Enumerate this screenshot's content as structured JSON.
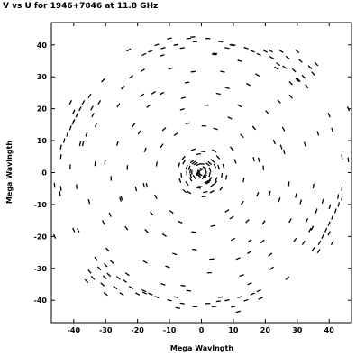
{
  "chart_data": {
    "type": "scatter",
    "title": "V vs U for 1946+7046 at 11.8 GHz",
    "xlabel": "Mega Wavlngth",
    "ylabel": "Mega Wavlngth",
    "xlim": [
      -47,
      47
    ],
    "ylim": [
      -47,
      47
    ],
    "x_ticks": [
      -40,
      -30,
      -20,
      -10,
      0,
      10,
      20,
      30,
      40
    ],
    "y_ticks": [
      -40,
      -30,
      -20,
      -10,
      0,
      10,
      20,
      30,
      40
    ],
    "grid": false,
    "marker": "short-dash",
    "series": [
      {
        "points": [
          [
            -1.6,
            -0.3
          ],
          [
            2.0,
            -3.2
          ],
          [
            -0.4,
            -4.4
          ],
          [
            5.4,
            1.7
          ],
          [
            -3.8,
            1.5
          ],
          [
            -0.6,
            -0.2
          ],
          [
            -3.0,
            0.1
          ],
          [
            0.9,
            -0.8
          ],
          [
            -0.4,
            -0.5
          ],
          [
            2.6,
            -0.6
          ],
          [
            -0.8,
            -1.0
          ],
          [
            1.1,
            -1.2
          ],
          [
            1.4,
            0.4
          ],
          [
            -3.5,
            0.5
          ],
          [
            2.7,
            0.9
          ],
          [
            -2.9,
            3.5
          ],
          [
            -4.6,
            -0.1
          ],
          [
            0.2,
            2.7
          ],
          [
            0.2,
            1.2
          ],
          [
            -2.2,
            -1.4
          ],
          [
            1.6,
            -2.9
          ],
          [
            -1.1,
            0.2
          ],
          [
            2.6,
            3.0
          ],
          [
            4.4,
            -3.2
          ],
          [
            -0.9,
            -0.7
          ],
          [
            -4.6,
            1.7
          ],
          [
            -1.0,
            2.5
          ],
          [
            -0.4,
            0.6
          ],
          [
            -3.4,
            -2.1
          ],
          [
            4.6,
            -2.1
          ],
          [
            -4.5,
            -3.4
          ],
          [
            -0.9,
            -4.8
          ],
          [
            -3.3,
            -1.1
          ],
          [
            2.8,
            -2.0
          ],
          [
            3.5,
            3.7
          ],
          [
            1.0,
            1.5
          ],
          [
            -1.8,
            2.8
          ],
          [
            2.0,
            2.6
          ],
          [
            0.8,
            -1.6
          ],
          [
            2.3,
            -2.8
          ],
          [
            -5.5,
            3.3
          ],
          [
            3.4,
            -4.0
          ],
          [
            4.2,
            2.1
          ],
          [
            -2.4,
            3.1
          ],
          [
            -5.6,
            4.6
          ],
          [
            1.2,
            -6.1
          ],
          [
            -0.9,
            5.8
          ],
          [
            3.3,
            -6.0
          ],
          [
            6.4,
            -0.9
          ],
          [
            -6.3,
            -0.8
          ],
          [
            0.5,
            6.6
          ],
          [
            -3.9,
            -6.2
          ],
          [
            5.2,
            4.8
          ],
          [
            -6.7,
            -2.5
          ],
          [
            6.9,
            2.0
          ],
          [
            0.8,
            -7.5
          ],
          [
            -2.5,
            7.2
          ],
          [
            7.8,
            -1.5
          ],
          [
            -7.0,
            2.4
          ],
          [
            4.0,
            6.8
          ],
          [
            -5.3,
            -5.8
          ],
          [
            6.2,
            -5.0
          ],
          [
            10.6,
            3.5
          ],
          [
            9.5,
            7.5
          ],
          [
            13.2,
            -2.3
          ],
          [
            12.8,
            -9.5
          ],
          [
            4.4,
            13.7
          ],
          [
            -9.4,
            -12.3
          ],
          [
            -12.4,
            8.4
          ],
          [
            -14.0,
            2.7
          ],
          [
            0.8,
            14.6
          ],
          [
            -4.3,
            15.4
          ],
          [
            9.5,
            -14.1
          ],
          [
            -14.3,
            -7.6
          ],
          [
            16.4,
            4.2
          ],
          [
            -6.7,
            -15.5
          ],
          [
            3.6,
            -16.7
          ],
          [
            -17.1,
            -4.0
          ],
          [
            12.7,
            11.5
          ],
          [
            -11.7,
            13.6
          ],
          [
            17.6,
            -6.8
          ],
          [
            -2.4,
            -18.6
          ],
          [
            8.9,
            17.1
          ],
          [
            -17.6,
            7.1
          ],
          [
            19.4,
            1.5
          ],
          [
            -15.6,
            -12.8
          ],
          [
            14.4,
            -15.2
          ],
          [
            -6.0,
            19.8
          ],
          [
            1.5,
            21.1
          ],
          [
            -20.5,
            -5.1
          ],
          [
            16.5,
            14.0
          ],
          [
            21.4,
            -6.5
          ],
          [
            -11.6,
            -19.6
          ],
          [
            9.9,
            -20.9
          ],
          [
            -19.4,
            12.6
          ],
          [
            -23.2,
            1.6
          ],
          [
            12.0,
            20.9
          ],
          [
            22.8,
            9.6
          ],
          [
            -5.7,
            23.4
          ],
          [
            -2.2,
            -24.1
          ],
          [
            19.5,
            -15.6
          ],
          [
            -17.2,
            -18.3
          ],
          [
            5.3,
            24.7
          ],
          [
            24.4,
            -8.5
          ],
          [
            -21.2,
            14.9
          ],
          [
            -25.4,
            -8.4
          ],
          [
            15.1,
            -21.4
          ],
          [
            -16.6,
            20.8
          ],
          [
            25.9,
            6.5
          ],
          [
            -8.4,
            -25.5
          ],
          [
            3.2,
            -27.1
          ],
          [
            -26.3,
            9.1
          ],
          [
            20.6,
            18.9
          ],
          [
            -12.4,
            24.8
          ],
          [
            8.1,
            26.5
          ],
          [
            27.4,
            -3.5
          ],
          [
            -28.3,
            -1.8
          ],
          [
            19.1,
            -21.6
          ],
          [
            -23.5,
            -17.4
          ],
          [
            -4.5,
            28.2
          ],
          [
            11.5,
            -26.9
          ],
          [
            25.7,
            13.6
          ],
          [
            29.6,
            -7.2
          ],
          [
            -18.6,
            24.2
          ],
          [
            -30.2,
            3.3
          ],
          [
            14.7,
            27.6
          ],
          [
            -10.6,
            -29.5
          ],
          [
            27.8,
            -15.0
          ],
          [
            -28.6,
            -13.2
          ],
          [
            2.5,
            -31.4
          ],
          [
            24.3,
            22.3
          ],
          [
            -2.6,
            31.6
          ],
          [
            -26.0,
            21.1
          ],
          [
            6.6,
            31.6
          ],
          [
            31.1,
            -9.2
          ],
          [
            -17.6,
            -28.0
          ],
          [
            21.5,
            -25.7
          ],
          [
            -33.3,
            2.8
          ],
          [
            32.4,
            8.9
          ],
          [
            -9.6,
            32.6
          ],
          [
            12.6,
            -32.2
          ],
          [
            -30.7,
            -15.6
          ],
          [
            17.5,
            30.6
          ],
          [
            -24.6,
            26.6
          ],
          [
            35.1,
            -4.2
          ],
          [
            -5.8,
            -35.4
          ],
          [
            29.3,
            -21.1
          ],
          [
            -35.2,
            -9.1
          ],
          [
            28.0,
            23.8
          ],
          [
            -18.4,
            32.0
          ],
          [
            4.2,
            37.3
          ],
          [
            -29.4,
            -24.1
          ],
          [
            15.1,
            -34.8
          ],
          [
            -37.1,
            9.0
          ],
          [
            36.5,
            12.3
          ],
          [
            -12.3,
            36.7
          ],
          [
            -23.2,
            -31.8
          ],
          [
            34.7,
            -17.4
          ],
          [
            -39.1,
            -4.4
          ],
          [
            23.5,
            32.7
          ],
          [
            -34.3,
            20.2
          ],
          [
            5.3,
            -40.3
          ],
          [
            9.5,
            39.9
          ],
          [
            -41.1,
            1.8
          ],
          [
            40.2,
            -10.7
          ],
          [
            -17.8,
            -37.7
          ],
          [
            30.5,
            29.0
          ],
          [
            -30.8,
            28.9
          ],
          [
            26.9,
            -33.1
          ],
          [
            -38.6,
            -18.1
          ],
          [
            -2.7,
            42.5
          ],
          [
            41.0,
            13.3
          ],
          [
            -7.4,
            -42.4
          ],
          [
            18.5,
            -39.4
          ],
          [
            -40.2,
            15.7
          ],
          [
            36.7,
            -24.6
          ],
          [
            -30.3,
            -32.8
          ],
          [
            21.7,
            38.1
          ],
          [
            42.8,
            -7.5
          ],
          [
            -22.8,
            38.4
          ],
          [
            -44.3,
            -6.6
          ],
          [
            11.5,
            -43.6
          ],
          [
            -36,
            -34
          ],
          [
            -34,
            -33
          ],
          [
            -32,
            -30
          ],
          [
            -30,
            -29
          ],
          [
            -28,
            -28
          ],
          [
            -33,
            -27
          ],
          [
            -35,
            -31
          ],
          [
            -31,
            -35
          ],
          [
            -27,
            -36
          ],
          [
            -29,
            -32
          ],
          [
            -26,
            -33
          ],
          [
            -24,
            -34
          ],
          [
            -22,
            -36
          ],
          [
            -18,
            -37
          ],
          [
            -16,
            -38
          ],
          [
            -14,
            -39
          ],
          [
            -12,
            -35
          ],
          [
            -10,
            -40
          ],
          [
            -8,
            -39
          ],
          [
            -6,
            -41
          ],
          [
            -4,
            -37
          ],
          [
            -2,
            -42
          ],
          [
            2,
            -41
          ],
          [
            4,
            -42
          ],
          [
            6,
            -39
          ],
          [
            8,
            -40
          ],
          [
            10,
            -42
          ],
          [
            12,
            -39
          ],
          [
            14,
            -40
          ],
          [
            16,
            -38
          ],
          [
            18,
            -37
          ],
          [
            -20,
            -38
          ],
          [
            36,
            34
          ],
          [
            34,
            33
          ],
          [
            32,
            30
          ],
          [
            30,
            29
          ],
          [
            28,
            28
          ],
          [
            33,
            27
          ],
          [
            35,
            31
          ],
          [
            31,
            35
          ],
          [
            27,
            36
          ],
          [
            29,
            32
          ],
          [
            26,
            33
          ],
          [
            24,
            34
          ],
          [
            22,
            36
          ],
          [
            18,
            37
          ],
          [
            16,
            38
          ],
          [
            14,
            39
          ],
          [
            12,
            35
          ],
          [
            10,
            40
          ],
          [
            8,
            39
          ],
          [
            6,
            41
          ],
          [
            4,
            37
          ],
          [
            2,
            42
          ],
          [
            -2,
            41
          ],
          [
            -4,
            42
          ],
          [
            -6,
            39
          ],
          [
            -8,
            40
          ],
          [
            -10,
            42
          ],
          [
            -12,
            39
          ],
          [
            -14,
            40
          ],
          [
            -16,
            38
          ],
          [
            -18,
            37
          ],
          [
            20,
            38
          ],
          [
            -38,
            20
          ],
          [
            -40,
            16
          ],
          [
            -42,
            12
          ],
          [
            -43,
            10
          ],
          [
            -41,
            14
          ],
          [
            -39,
            18
          ],
          [
            -37,
            22
          ],
          [
            -35,
            24
          ],
          [
            -34,
            18
          ],
          [
            -33,
            15
          ],
          [
            -36,
            12
          ],
          [
            -38,
            9
          ],
          [
            -44,
            8
          ],
          [
            -41,
            22
          ],
          [
            -40,
            19
          ],
          [
            -32,
            22
          ],
          [
            38,
            -20
          ],
          [
            40,
            -16
          ],
          [
            42,
            -12
          ],
          [
            43,
            -10
          ],
          [
            41,
            -14
          ],
          [
            39,
            -18
          ],
          [
            37,
            -22
          ],
          [
            35,
            -24
          ],
          [
            34,
            -18
          ],
          [
            33,
            -15
          ],
          [
            36,
            -12
          ],
          [
            38,
            -9
          ],
          [
            44,
            -8
          ],
          [
            41,
            -22
          ],
          [
            40,
            -19
          ],
          [
            32,
            -22
          ],
          [
            -30,
            -38
          ],
          [
            -25,
            -38
          ],
          [
            30,
            38
          ],
          [
            25,
            38
          ],
          [
            -44,
            5
          ],
          [
            -44,
            -5
          ],
          [
            44,
            5
          ],
          [
            44,
            -5
          ],
          [
            -22,
            30
          ],
          [
            22,
            -30
          ],
          [
            -15,
            25
          ],
          [
            15,
            -25
          ],
          [
            -40,
            -18
          ],
          [
            40,
            18
          ],
          [
            -25,
            -8
          ],
          [
            25,
            8
          ],
          [
            -46,
            -20
          ],
          [
            46,
            20
          ],
          [
            -46,
            -4
          ],
          [
            46,
            4
          ],
          [
            -8,
            12
          ],
          [
            8,
            -12
          ],
          [
            -18,
            -4
          ],
          [
            18,
            4
          ]
        ]
      }
    ]
  }
}
